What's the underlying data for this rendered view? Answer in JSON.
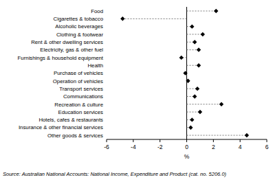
{
  "chart_data": {
    "type": "dot",
    "orientation": "horizontal",
    "categories": [
      "Food",
      "Cigarettes & tobacco",
      "Alcoholic beverages",
      "Clothing & footwear",
      "Rent & other dwelling services",
      "Electricity, gas & other fuel",
      "Furnishings & household equipment",
      "Health",
      "Purchase of vehicles",
      "Operation of vehicles",
      "Transport services",
      "Communications",
      "Recreation & culture",
      "Education services",
      "Hotels, cafes & restaurants",
      "Insurance & other financial services",
      "Other goods & services"
    ],
    "values": [
      2.2,
      -4.8,
      0.4,
      1.2,
      0.6,
      0.9,
      -0.4,
      0.9,
      -0.1,
      0.1,
      0.8,
      0.6,
      2.6,
      1.0,
      0.4,
      0.3,
      4.5
    ],
    "color": "#000000",
    "marker": "diamond",
    "line_style": "dashed",
    "x_label": "%",
    "xlim": [
      -6,
      6
    ],
    "xticks": [
      -6,
      -4,
      -2,
      0,
      2,
      4,
      6
    ],
    "annotations": [
      "Source: Australian National Accounts: National Income, Expenditure and Product (cat. no. 5206.0)"
    ]
  }
}
